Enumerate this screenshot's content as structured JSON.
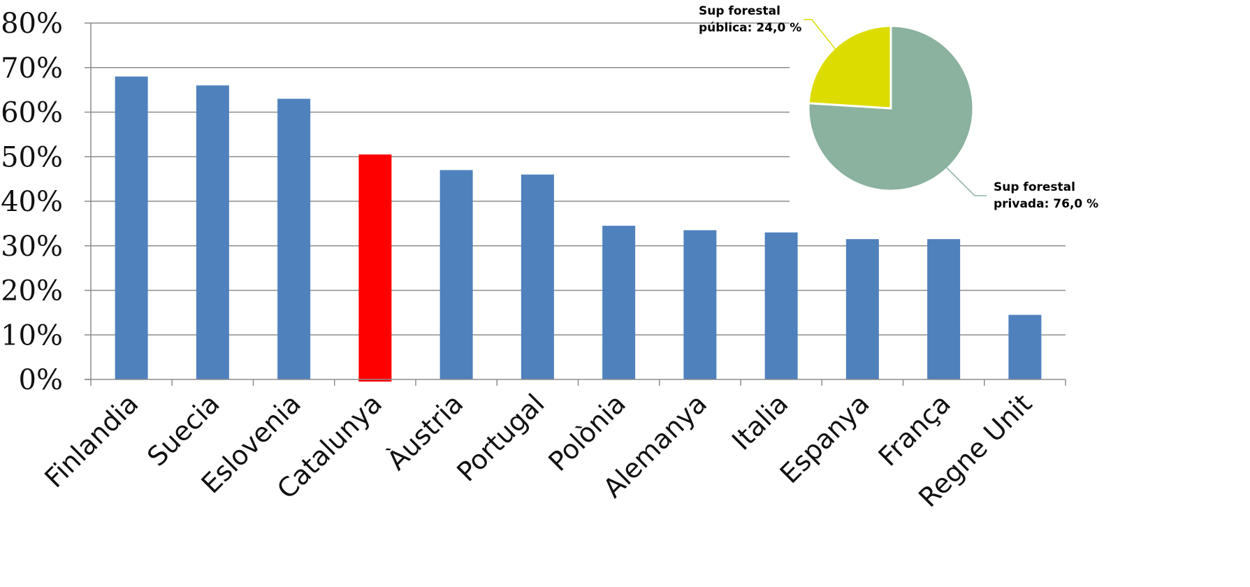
{
  "chart_data": [
    {
      "type": "bar",
      "categories": [
        "Finlandia",
        "Suecia",
        "Eslovenia",
        "Catalunya",
        "Àustria",
        "Portugal",
        "Polònia",
        "Alemanya",
        "Italia",
        "Espanya",
        "França",
        "Regne Unit"
      ],
      "values": [
        68,
        66,
        63,
        50.5,
        47,
        46,
        34.5,
        33.5,
        33,
        31.5,
        31.5,
        14.5
      ],
      "highlight_category": "Catalunya",
      "ylim": [
        0,
        80
      ],
      "yticks": [
        "0%",
        "10%",
        "20%",
        "30%",
        "40%",
        "50%",
        "60%",
        "70%",
        "80%"
      ],
      "grid": true,
      "colors": {
        "bar": "#4f81bd",
        "highlight": "#ff0000",
        "grid": "#8c8c8c",
        "axis": "#8c8c8c"
      }
    },
    {
      "type": "pie",
      "labels": [
        "Sup forestal privada: 76,0 %",
        "Sup forestal pública: 24,0 %"
      ],
      "values": [
        76.0,
        24.0
      ],
      "colors": [
        "#8ab29e",
        "#dcdc00"
      ]
    }
  ]
}
